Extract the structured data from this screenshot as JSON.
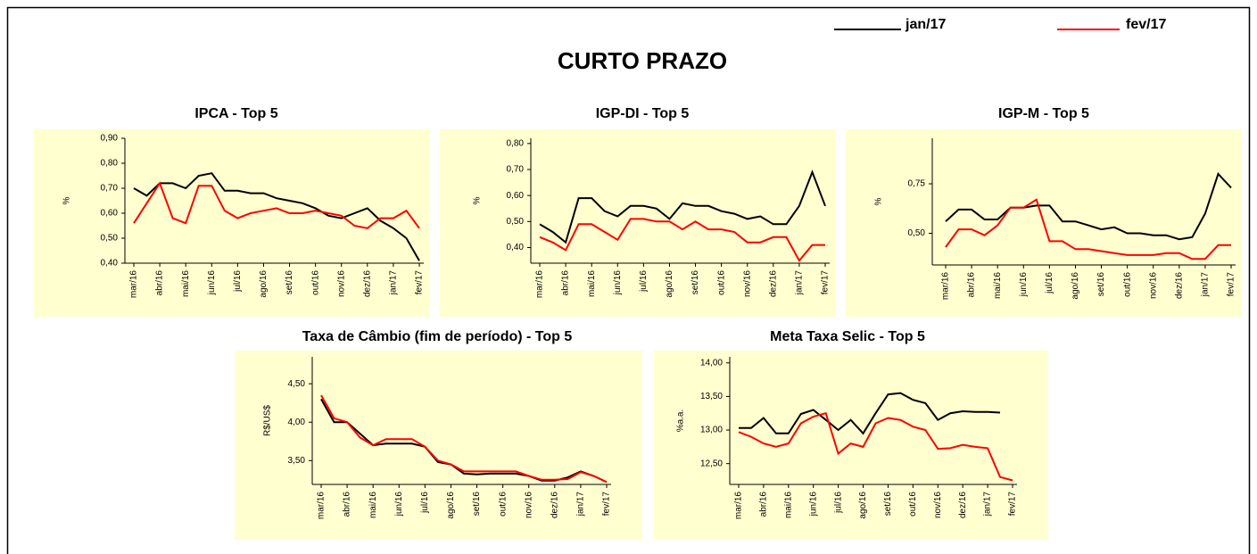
{
  "title": "CURTO PRAZO",
  "chart_data": [
    {
      "type": "line",
      "title": "IPCA - Top 5",
      "y_label": "%",
      "categories": [
        "mar/16",
        null,
        "abr/16",
        null,
        "mai/16",
        null,
        "jun/16",
        null,
        "jul/16",
        null,
        "ago/16",
        null,
        "set/16",
        null,
        "out/16",
        null,
        "nov/16",
        null,
        "dez/16",
        null,
        "jan/17",
        null,
        "fev/17"
      ],
      "series": [
        {
          "name": "jan/17",
          "color": "#000000",
          "values": [
            0.7,
            0.67,
            0.72,
            0.72,
            0.7,
            0.75,
            0.76,
            0.69,
            0.69,
            0.68,
            0.68,
            0.66,
            0.65,
            0.64,
            0.62,
            0.59,
            0.58,
            0.6,
            0.62,
            0.57,
            0.54,
            0.5,
            0.41
          ]
        },
        {
          "name": "fev/17",
          "color": "#ff0000",
          "values": [
            0.56,
            0.64,
            0.72,
            0.58,
            0.56,
            0.71,
            0.71,
            0.61,
            0.58,
            0.6,
            0.61,
            0.62,
            0.6,
            0.6,
            0.61,
            0.6,
            0.59,
            0.55,
            0.54,
            0.58,
            0.58,
            0.61,
            0.54
          ]
        }
      ],
      "ylim": [
        0.4,
        0.9
      ],
      "yticks": [
        {
          "value": 0.4,
          "label": "0,40"
        },
        {
          "value": 0.5,
          "label": "0,50"
        },
        {
          "value": 0.6,
          "label": "0,60"
        },
        {
          "value": 0.7,
          "label": "0,70"
        },
        {
          "value": 0.8,
          "label": "0,80"
        },
        {
          "value": 0.9,
          "label": "0,90"
        }
      ]
    },
    {
      "type": "line",
      "title": "IGP-DI - Top 5",
      "y_label": "%",
      "categories": [
        "mar/16",
        null,
        "abr/16",
        null,
        "mai/16",
        null,
        "jun/16",
        null,
        "jul/16",
        null,
        "ago/16",
        null,
        "set/16",
        null,
        "out/16",
        null,
        "nov/16",
        null,
        "dez/16",
        null,
        "jan/17",
        null,
        "fev/17"
      ],
      "series": [
        {
          "color": "#000000",
          "values": [
            0.49,
            0.46,
            0.42,
            0.59,
            0.59,
            0.54,
            0.52,
            0.56,
            0.56,
            0.55,
            0.51,
            0.57,
            0.56,
            0.56,
            0.54,
            0.53,
            0.51,
            0.52,
            0.49,
            0.49,
            0.56,
            0.69,
            0.56
          ]
        },
        {
          "color": "#ff0000",
          "values": [
            0.44,
            0.42,
            0.39,
            0.49,
            0.49,
            0.46,
            0.43,
            0.51,
            0.51,
            0.5,
            0.5,
            0.47,
            0.5,
            0.47,
            0.47,
            0.46,
            0.42,
            0.42,
            0.44,
            0.44,
            0.35,
            0.41,
            0.41
          ]
        }
      ],
      "ylim": [
        0.34,
        0.82
      ],
      "yticks": [
        {
          "value": 0.4,
          "label": "0,40"
        },
        {
          "value": 0.5,
          "label": "0,50"
        },
        {
          "value": 0.6,
          "label": "0,60"
        },
        {
          "value": 0.7,
          "label": "0,70"
        },
        {
          "value": 0.8,
          "label": "0,80"
        }
      ]
    },
    {
      "type": "line",
      "title": "IGP-M - Top 5",
      "y_label": "%",
      "categories": [
        "mar/16",
        null,
        "abr/16",
        null,
        "mai/16",
        null,
        "jun/16",
        null,
        "jul/16",
        null,
        "ago/16",
        null,
        "set/16",
        null,
        "out/16",
        null,
        "nov/16",
        null,
        "dez/16",
        null,
        "jan/17",
        null,
        "fev/17"
      ],
      "series": [
        {
          "color": "#000000",
          "values": [
            0.56,
            0.62,
            0.62,
            0.57,
            0.57,
            0.63,
            0.63,
            0.64,
            0.64,
            0.56,
            0.56,
            0.54,
            0.52,
            0.53,
            0.5,
            0.5,
            0.49,
            0.49,
            0.47,
            0.48,
            0.6,
            0.8,
            0.73
          ]
        },
        {
          "color": "#ff0000",
          "values": [
            0.43,
            0.52,
            0.52,
            0.49,
            0.54,
            0.63,
            0.63,
            0.67,
            0.46,
            0.46,
            0.42,
            0.42,
            0.41,
            0.4,
            0.39,
            0.39,
            0.39,
            0.4,
            0.4,
            0.37,
            0.37,
            0.44,
            0.44
          ]
        }
      ],
      "ylim": [
        0.34,
        0.98
      ],
      "yticks": [
        {
          "value": 0.5,
          "label": "0,50"
        },
        {
          "value": 0.75,
          "label": "0,75"
        }
      ]
    },
    {
      "type": "line",
      "title": "Taxa de Câmbio (fim de período) - Top 5",
      "y_label": "R$/US$",
      "categories": [
        "mar/16",
        null,
        "abr/16",
        null,
        "mai/16",
        null,
        "jun/16",
        null,
        "jul/16",
        null,
        "ago/16",
        null,
        "set/16",
        null,
        "out/16",
        null,
        "nov/16",
        null,
        "dez/16",
        null,
        "jan/17",
        null,
        "fev/17"
      ],
      "series": [
        {
          "color": "#000000",
          "values": [
            4.3,
            4.0,
            4.0,
            3.85,
            3.7,
            3.72,
            3.72,
            3.72,
            3.68,
            3.48,
            3.45,
            3.33,
            3.32,
            3.33,
            3.33,
            3.33,
            3.3,
            3.24,
            3.24,
            3.28,
            3.36,
            3.3,
            3.22
          ]
        },
        {
          "color": "#ff0000",
          "values": [
            4.35,
            4.05,
            4.0,
            3.8,
            3.7,
            3.78,
            3.78,
            3.78,
            3.68,
            3.5,
            3.45,
            3.36,
            3.36,
            3.36,
            3.36,
            3.36,
            3.3,
            3.25,
            3.25,
            3.26,
            3.35,
            3.3,
            3.22
          ]
        }
      ],
      "ylim": [
        3.19,
        4.85
      ],
      "yticks": [
        {
          "value": 3.5,
          "label": "3,50"
        },
        {
          "value": 4.0,
          "label": "4,00"
        },
        {
          "value": 4.5,
          "label": "4,50"
        }
      ]
    },
    {
      "type": "line",
      "title": "Meta Taxa Selic - Top 5",
      "y_label": "%a.a.",
      "categories": [
        "mar/16",
        null,
        "abr/16",
        null,
        "mai/16",
        null,
        "jun/16",
        null,
        "jul/16",
        null,
        "ago/16",
        null,
        "set/16",
        null,
        "out/16",
        null,
        "nov/16",
        null,
        "dez/16",
        null,
        "jan/17",
        null,
        "fev/17"
      ],
      "series": [
        {
          "color": "#000000",
          "values": [
            13.03,
            13.03,
            13.18,
            12.95,
            12.95,
            13.24,
            13.3,
            13.15,
            13.0,
            13.15,
            12.95,
            13.25,
            13.53,
            13.55,
            13.45,
            13.4,
            13.15,
            13.25,
            13.28,
            13.27,
            13.27,
            13.26,
            null
          ]
        },
        {
          "color": "#ff0000",
          "values": [
            12.97,
            12.9,
            12.8,
            12.75,
            12.8,
            13.1,
            13.2,
            13.25,
            12.65,
            12.8,
            12.75,
            13.1,
            13.18,
            13.15,
            13.05,
            13.0,
            12.72,
            12.73,
            12.78,
            12.75,
            12.73,
            12.3,
            12.25
          ]
        }
      ],
      "ylim": [
        12.19,
        14.09
      ],
      "yticks": [
        {
          "value": 12.5,
          "label": "12,50"
        },
        {
          "value": 13.0,
          "label": "13,00"
        },
        {
          "value": 13.5,
          "label": "13,50"
        },
        {
          "value": 14.0,
          "label": "14,00"
        }
      ]
    }
  ]
}
